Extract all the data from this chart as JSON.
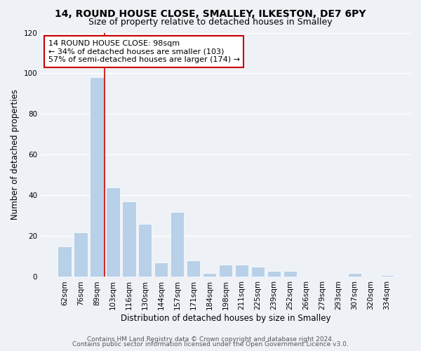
{
  "title": "14, ROUND HOUSE CLOSE, SMALLEY, ILKESTON, DE7 6PY",
  "subtitle": "Size of property relative to detached houses in Smalley",
  "xlabel": "Distribution of detached houses by size in Smalley",
  "ylabel": "Number of detached properties",
  "bar_labels": [
    "62sqm",
    "76sqm",
    "89sqm",
    "103sqm",
    "116sqm",
    "130sqm",
    "144sqm",
    "157sqm",
    "171sqm",
    "184sqm",
    "198sqm",
    "211sqm",
    "225sqm",
    "239sqm",
    "252sqm",
    "266sqm",
    "279sqm",
    "293sqm",
    "307sqm",
    "320sqm",
    "334sqm"
  ],
  "bar_values": [
    15,
    22,
    98,
    44,
    37,
    26,
    7,
    32,
    8,
    2,
    6,
    6,
    5,
    3,
    3,
    0,
    0,
    0,
    2,
    0,
    1
  ],
  "bar_color": "#b8d0e8",
  "bar_edge_color": "#ffffff",
  "vline_color": "#cc0000",
  "annotation_text": "14 ROUND HOUSE CLOSE: 98sqm\n← 34% of detached houses are smaller (103)\n57% of semi-detached houses are larger (174) →",
  "annotation_box_color": "#ffffff",
  "annotation_box_edge_color": "#cc0000",
  "ylim": [
    0,
    120
  ],
  "yticks": [
    0,
    20,
    40,
    60,
    80,
    100,
    120
  ],
  "footer1": "Contains HM Land Registry data © Crown copyright and database right 2024.",
  "footer2": "Contains public sector information licensed under the Open Government Licence v3.0.",
  "bg_color": "#eef2f7",
  "plot_bg_color": "#eef2f7",
  "grid_color": "#ffffff",
  "title_fontsize": 10,
  "subtitle_fontsize": 9,
  "xlabel_fontsize": 8.5,
  "ylabel_fontsize": 8.5,
  "tick_fontsize": 7.5,
  "annotation_fontsize": 8,
  "footer_fontsize": 6.5
}
